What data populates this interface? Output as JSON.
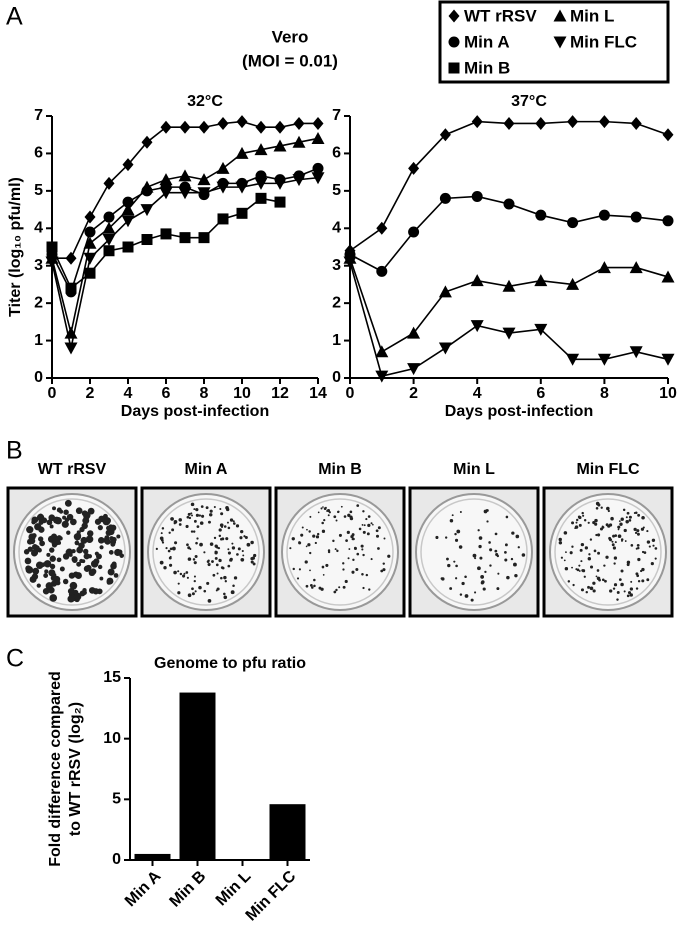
{
  "panel_labels": [
    "A",
    "B",
    "C"
  ],
  "header": {
    "cell_line": "Vero",
    "moi": "(MOI = 0.01)"
  },
  "plates": {
    "labels": [
      "WT rRSV",
      "Min A",
      "Min B",
      "Min L",
      "Min FLC"
    ]
  },
  "chart_data": [
    {
      "type": "line",
      "title": "32°C",
      "x_label": "Days post-infection",
      "y_label": "Titer (log₁₀ pfu/ml)",
      "x": [
        0,
        1,
        2,
        3,
        4,
        5,
        6,
        7,
        8,
        9,
        10,
        11,
        12,
        13,
        14
      ],
      "xlim": [
        0,
        14
      ],
      "xticks": [
        0,
        2,
        4,
        6,
        8,
        10,
        12,
        14
      ],
      "ylim": [
        0,
        7
      ],
      "yticks": [
        0,
        1,
        2,
        3,
        4,
        5,
        6,
        7
      ],
      "series": [
        {
          "name": "WT rRSV",
          "color": "#000000",
          "marker": "diamond",
          "values": [
            3.2,
            3.2,
            4.3,
            5.2,
            5.7,
            6.3,
            6.7,
            6.7,
            6.7,
            6.8,
            6.85,
            6.7,
            6.7,
            6.8,
            6.8
          ]
        },
        {
          "name": "Min A",
          "color": "#000000",
          "marker": "circle",
          "values": [
            3.3,
            2.3,
            3.9,
            4.3,
            4.7,
            5.0,
            5.1,
            5.1,
            4.9,
            5.2,
            5.2,
            5.4,
            5.3,
            5.4,
            5.6
          ]
        },
        {
          "name": "Min B",
          "color": "#000000",
          "marker": "square",
          "values": [
            3.5,
            2.4,
            2.8,
            3.4,
            3.5,
            3.7,
            3.85,
            3.75,
            3.75,
            4.25,
            4.4,
            4.8,
            4.7,
            null,
            null
          ]
        },
        {
          "name": "Min L",
          "color": "#000000",
          "marker": "triangle-up",
          "values": [
            3.2,
            1.2,
            3.6,
            4.0,
            4.5,
            5.1,
            5.3,
            5.4,
            5.3,
            5.6,
            6.0,
            6.1,
            6.2,
            6.3,
            6.4
          ]
        },
        {
          "name": "Min FLC",
          "color": "#000000",
          "marker": "triangle-down",
          "values": [
            3.1,
            0.8,
            3.2,
            3.7,
            4.2,
            4.5,
            4.95,
            4.95,
            4.95,
            5.1,
            5.1,
            5.2,
            5.2,
            5.3,
            5.35
          ]
        }
      ]
    },
    {
      "type": "line",
      "title": "37°C",
      "x_label": "Days post-infection",
      "x": [
        0,
        1,
        2,
        3,
        4,
        5,
        6,
        7,
        8,
        9,
        10
      ],
      "xlim": [
        0,
        10
      ],
      "xticks": [
        0,
        2,
        4,
        6,
        8,
        10
      ],
      "ylim": [
        0,
        7
      ],
      "yticks": [
        0,
        1,
        2,
        3,
        4,
        5,
        6,
        7
      ],
      "series": [
        {
          "name": "WT rRSV",
          "color": "#000000",
          "marker": "diamond",
          "values": [
            3.4,
            4.0,
            5.6,
            6.5,
            6.85,
            6.8,
            6.8,
            6.85,
            6.85,
            6.8,
            6.5
          ]
        },
        {
          "name": "Min A",
          "color": "#000000",
          "marker": "circle",
          "values": [
            3.3,
            2.85,
            3.9,
            4.8,
            4.85,
            4.65,
            4.35,
            4.15,
            4.35,
            4.3,
            4.2
          ]
        },
        {
          "name": "Min L",
          "color": "#000000",
          "marker": "triangle-up",
          "values": [
            3.2,
            0.7,
            1.2,
            2.3,
            2.6,
            2.45,
            2.6,
            2.5,
            2.95,
            2.95,
            2.7
          ]
        },
        {
          "name": "Min FLC",
          "color": "#000000",
          "marker": "triangle-down",
          "values": [
            3.1,
            0.05,
            0.25,
            0.8,
            1.4,
            1.2,
            1.3,
            0.5,
            0.5,
            0.7,
            0.5
          ]
        }
      ]
    },
    {
      "type": "bar",
      "title": "Genome to pfu ratio",
      "y_label": [
        "Fold difference compared",
        "to WT rRSV (log₂)"
      ],
      "categories": [
        "Min A",
        "Min B",
        "Min L",
        "Min FLC"
      ],
      "values": [
        0.5,
        13.8,
        0,
        4.6
      ],
      "color": "#000000",
      "ylim": [
        0,
        15
      ],
      "yticks": [
        0,
        5,
        10,
        15
      ]
    }
  ]
}
